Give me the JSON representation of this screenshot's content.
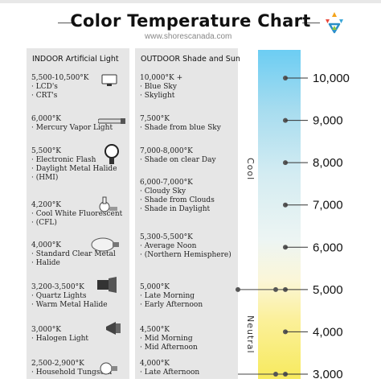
{
  "title": "Color Temperature Chart",
  "url": "www.shorescanada.com",
  "indoor": {
    "heading": "INDOOR Artificial Light",
    "groups": [
      {
        "range": "5,500-10,500°K",
        "items": [
          "LCD's",
          "CRT's"
        ],
        "icon": "monitor-icon"
      },
      {
        "range": "6,000°K",
        "items": [
          "Mercury Vapor Light"
        ],
        "icon": "tube-lamp-icon"
      },
      {
        "range": "5,500°K",
        "items": [
          "Electronic Flash",
          "Daylight Metal Halide",
          "(HMI)"
        ],
        "icon": "flash-lamp-icon"
      },
      {
        "range": "4,200°K",
        "items": [
          "Cool White Fluorescent",
          "(CFL)"
        ],
        "icon": "cfl-bulb-icon"
      },
      {
        "range": "4,000°K",
        "items": [
          "Standard Clear Metal",
          "Halide"
        ],
        "icon": "metal-halide-bulb-icon"
      },
      {
        "range": "3,200-3,500°K",
        "items": [
          "Quartz Lights",
          "Warm Metal Halide"
        ],
        "icon": "quartz-light-icon"
      },
      {
        "range": "3,000°K",
        "items": [
          "Halogen Light"
        ],
        "icon": "halogen-icon"
      },
      {
        "range": "2,500-2,900°K",
        "items": [
          "Household Tungsten"
        ],
        "icon": "tungsten-bulb-icon"
      }
    ]
  },
  "outdoor": {
    "heading": "OUTDOOR Shade and Sun",
    "groups": [
      {
        "range": "10,000°K +",
        "items": [
          "Blue Sky",
          "Skylight"
        ]
      },
      {
        "range": "7,500°K",
        "items": [
          "Shade from blue Sky"
        ]
      },
      {
        "range": "7,000-8,000°K",
        "items": [
          "Shade on clear Day"
        ]
      },
      {
        "range": "6,000-7,000°K",
        "items": [
          "Cloudy Sky",
          "Shade from Clouds",
          "Shade in Daylight"
        ]
      },
      {
        "range": "5,300-5,500°K",
        "items": [
          "Average Noon",
          "(Northern Hemisphere)"
        ]
      },
      {
        "range": "5,000°K",
        "items": [
          "Late Morning",
          "Early Afternoon"
        ]
      },
      {
        "range": "4,500°K",
        "items": [
          "Mid Morning",
          "Mid Afternoon"
        ]
      },
      {
        "range": "4,000°K",
        "items": [
          "Late Afternoon"
        ]
      }
    ]
  },
  "chart_data": {
    "type": "scale",
    "title": "Color Temperature Chart",
    "scale_labels": [
      "10,000",
      "9,000",
      "8,000",
      "7,000",
      "6,000",
      "5,000",
      "4,000",
      "3,000"
    ],
    "scale_values": [
      10000,
      9000,
      8000,
      7000,
      6000,
      5000,
      4000,
      3000
    ],
    "regions": [
      {
        "name": "Cool",
        "from": 10000,
        "to": 5000
      },
      {
        "name": "Neutral",
        "from": 5000,
        "to": 3000
      }
    ],
    "gradient_colors": [
      "#6ccdf3",
      "#edf5f3",
      "#f7ea5e"
    ]
  },
  "colors": {
    "accent_dot": "#555555",
    "panel": "#e6e6e6"
  }
}
